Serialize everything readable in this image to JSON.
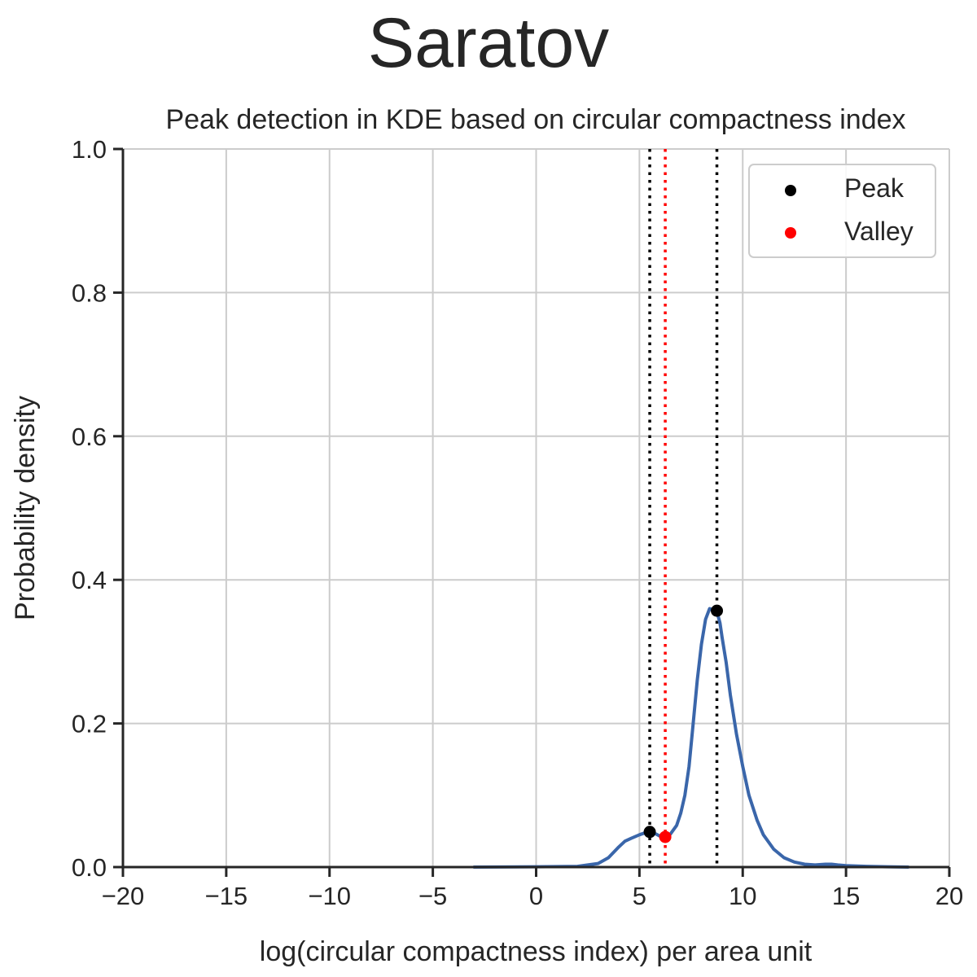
{
  "figure": {
    "suptitle": "Saratov"
  },
  "chart_data": {
    "type": "line",
    "title": "Peak detection in KDE based on circular compactness index",
    "xlabel": "log(circular compactness index) per area unit",
    "ylabel": "Probability density",
    "xlim": [
      -20,
      20
    ],
    "ylim": [
      0,
      1.0
    ],
    "xticks": [
      -20,
      -15,
      -10,
      -5,
      0,
      5,
      10,
      15,
      20
    ],
    "xtick_labels": [
      "−20",
      "−15",
      "−10",
      "−5",
      "0",
      "5",
      "10",
      "15",
      "20"
    ],
    "yticks": [
      0,
      0.2,
      0.4,
      0.6,
      0.8,
      1.0
    ],
    "ytick_labels": [
      "0.0",
      "0.2",
      "0.4",
      "0.6",
      "0.8",
      "1.0"
    ],
    "grid": true,
    "legend_position": "top-right",
    "legend": [
      {
        "label": "Peak",
        "color": "#000000"
      },
      {
        "label": "Valley",
        "color": "#ff0000"
      }
    ],
    "series": [
      {
        "color": "#3a66aa",
        "x": [
          -3.0,
          0.0,
          2.0,
          3.0,
          3.5,
          4.0,
          4.3,
          4.6,
          5.0,
          5.3,
          5.5,
          5.8,
          6.0,
          6.25,
          6.5,
          6.8,
          7.0,
          7.2,
          7.4,
          7.6,
          7.8,
          8.0,
          8.2,
          8.4,
          8.6,
          8.75,
          8.9,
          9.0,
          9.2,
          9.4,
          9.7,
          10.0,
          10.3,
          10.7,
          11.0,
          11.5,
          12.0,
          12.5,
          13.0,
          13.5,
          14.0,
          14.3,
          14.6,
          15.0,
          16.0,
          17.0,
          18.0
        ],
        "y": [
          0.0,
          0.0005,
          0.001,
          0.005,
          0.013,
          0.028,
          0.036,
          0.04,
          0.045,
          0.048,
          0.049,
          0.046,
          0.043,
          0.042,
          0.046,
          0.058,
          0.075,
          0.1,
          0.14,
          0.2,
          0.26,
          0.31,
          0.345,
          0.36,
          0.358,
          0.356,
          0.34,
          0.32,
          0.285,
          0.24,
          0.185,
          0.14,
          0.1,
          0.065,
          0.045,
          0.025,
          0.013,
          0.007,
          0.004,
          0.003,
          0.004,
          0.004,
          0.003,
          0.002,
          0.001,
          0.0005,
          0.0
        ]
      }
    ],
    "peaks": [
      {
        "x": 5.5,
        "y": 0.049
      },
      {
        "x": 8.75,
        "y": 0.357
      }
    ],
    "valleys": [
      {
        "x": 6.25,
        "y": 0.042
      }
    ],
    "vlines": [
      {
        "x": 5.5,
        "color": "#000000",
        "style": "dotted"
      },
      {
        "x": 8.75,
        "color": "#000000",
        "style": "dotted"
      },
      {
        "x": 6.25,
        "color": "#ff0000",
        "style": "dotted"
      }
    ]
  }
}
